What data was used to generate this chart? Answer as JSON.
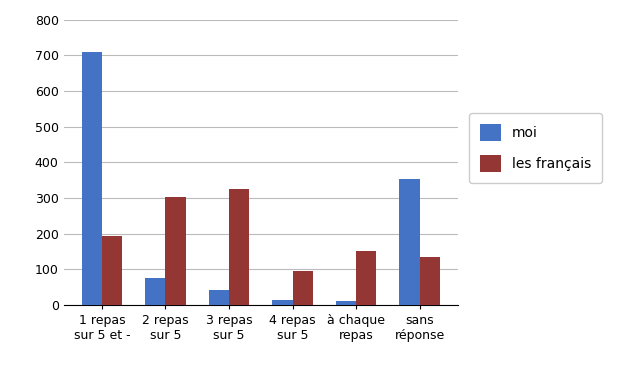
{
  "categories": [
    "1 repas\nsur 5 et -",
    "2 repas\nsur 5",
    "3 repas\nsur 5",
    "4 repas\nsur 5",
    "à chaque\nrepas",
    "sans\nréponse"
  ],
  "moi": [
    710,
    75,
    42,
    15,
    12,
    352
  ],
  "les_francais": [
    192,
    303,
    325,
    95,
    150,
    135
  ],
  "color_moi": "#4472C4",
  "color_francais": "#943634",
  "ylim": [
    0,
    800
  ],
  "yticks": [
    0,
    100,
    200,
    300,
    400,
    500,
    600,
    700,
    800
  ],
  "legend_moi": "moi",
  "legend_francais": "les français",
  "background_color": "#ffffff",
  "grid_color": "#bbbbbb"
}
